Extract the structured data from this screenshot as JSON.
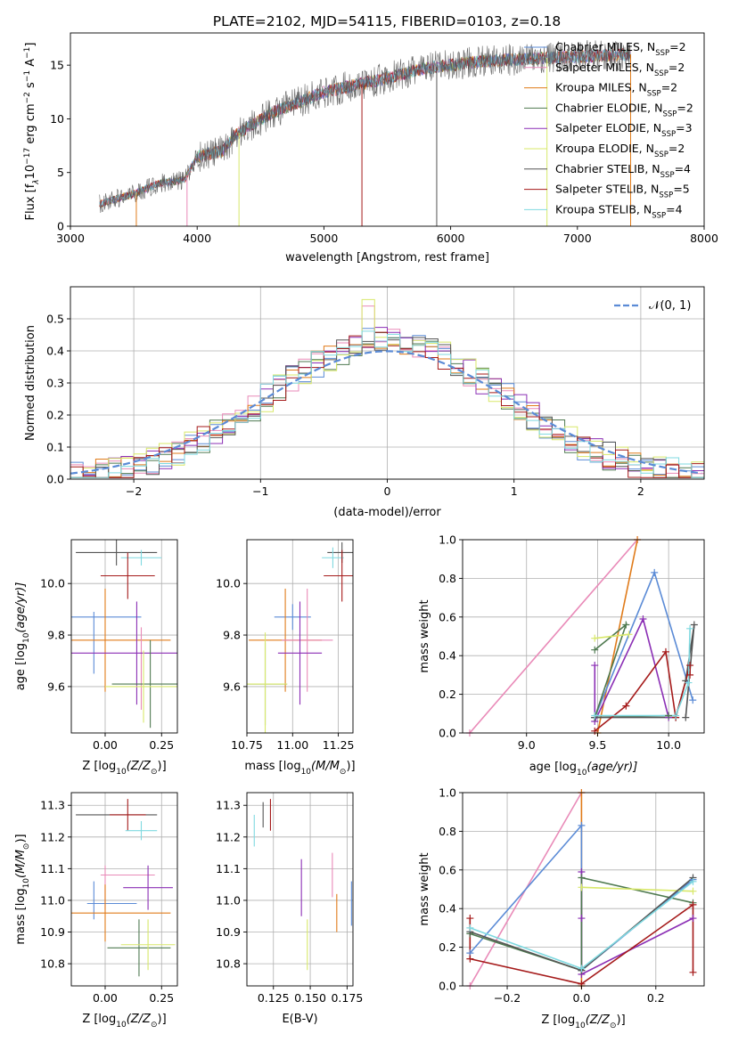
{
  "title": "PLATE=2102, MJD=54115, FIBERID=0103, z=0.18",
  "colors": {
    "chabrier_miles": "#5b8bd6",
    "salpeter_miles": "#e98ab8",
    "kroupa_miles": "#e07b1a",
    "chabrier_elodie": "#4f7a50",
    "salpeter_elodie": "#8b2fb5",
    "kroupa_elodie": "#d8e86a",
    "chabrier_stelib": "#555555",
    "salpeter_stelib": "#a51a1a",
    "kroupa_stelib": "#7fd9e0",
    "normal_curve": "#5b8bd6"
  },
  "chart_data": [
    {
      "id": "spectrum",
      "type": "line",
      "xlabel": "wavelength [Angstrom, rest frame]",
      "ylabel": "Flux [f",
      "xlim": [
        3000,
        8000
      ],
      "ylim": [
        0,
        18
      ],
      "xticks": [
        "3000",
        "4000",
        "5000",
        "6000",
        "7000",
        "8000"
      ],
      "yticks": [
        "0",
        "5",
        "10",
        "15"
      ],
      "x_range_data": [
        3230,
        7420
      ],
      "legend": [
        {
          "key": "chabrier_miles",
          "label": "Chabrier MILES, N",
          "n": "2"
        },
        {
          "key": "salpeter_miles",
          "label": "Salpeter MILES, N",
          "n": "2"
        },
        {
          "key": "kroupa_miles",
          "label": "Kroupa MILES, N",
          "n": "2"
        },
        {
          "key": "chabrier_elodie",
          "label": "Chabrier ELODIE, N",
          "n": "2"
        },
        {
          "key": "salpeter_elodie",
          "label": "Salpeter ELODIE, N",
          "n": "3"
        },
        {
          "key": "kroupa_elodie",
          "label": "Kroupa ELODIE, N",
          "n": "2"
        },
        {
          "key": "chabrier_stelib",
          "label": "Chabrier STELIB, N",
          "n": "4"
        },
        {
          "key": "salpeter_stelib",
          "label": "Salpeter STELIB, N",
          "n": "5"
        },
        {
          "key": "kroupa_stelib",
          "label": "Kroupa STELIB, N",
          "n": "4"
        }
      ],
      "continuum": [
        [
          3230,
          2.1
        ],
        [
          3500,
          3.0
        ],
        [
          3700,
          4.0
        ],
        [
          3900,
          4.3
        ],
        [
          4000,
          6.5
        ],
        [
          4200,
          7.0
        ],
        [
          4300,
          8.5
        ],
        [
          4600,
          10.6
        ],
        [
          5000,
          12.5
        ],
        [
          5200,
          13.0
        ],
        [
          5500,
          13.8
        ],
        [
          5800,
          14.7
        ],
        [
          6200,
          15.3
        ],
        [
          6600,
          15.6
        ],
        [
          7000,
          15.8
        ],
        [
          7420,
          16.0
        ]
      ],
      "vertical_drops": [
        3520,
        3920,
        4330,
        5300,
        5890,
        6760,
        7420
      ]
    },
    {
      "id": "residuals",
      "type": "histogram",
      "xlabel": "(data-model)/error",
      "ylabel": "Normed distribution",
      "xlim": [
        -2.5,
        2.5
      ],
      "ylim": [
        0,
        0.6
      ],
      "xticks": [
        "−2",
        "−1",
        "0",
        "1",
        "2"
      ],
      "yticks": [
        "0.0",
        "0.1",
        "0.2",
        "0.3",
        "0.4",
        "0.5"
      ],
      "bin_width": 0.1,
      "bins_start": -2.5,
      "legend": {
        "label": "𝒩(0, 1)"
      },
      "peak_bins": {
        "kroupa_elodie": 0.56,
        "salpeter_miles": 0.54
      }
    },
    {
      "id": "age_vs_Z",
      "type": "errorbar",
      "xlabel": "Z [log",
      "ylabel": "age  [log",
      "xlim": [
        -0.15,
        0.32
      ],
      "ylim": [
        9.42,
        10.17
      ],
      "xticks": [
        "0.00",
        "0.25"
      ],
      "yticks": [
        "9.6",
        "9.8",
        "10.0"
      ],
      "points": [
        {
          "key": "chabrier_stelib",
          "x": 0.05,
          "xerr": 0.18,
          "y": 10.12,
          "yerr": 0.05
        },
        {
          "key": "kroupa_stelib",
          "x": 0.16,
          "xerr": 0.09,
          "y": 10.1,
          "yerr": 0.03
        },
        {
          "key": "salpeter_stelib",
          "x": 0.1,
          "xerr": 0.12,
          "y": 10.03,
          "yerr": 0.09
        },
        {
          "key": "chabrier_miles",
          "x": -0.05,
          "xerr": 0.0,
          "y": 9.77,
          "yerr": 0.12
        },
        {
          "key": "chabrier_miles",
          "x": 0.0,
          "xerr": 0.16,
          "y": 9.87,
          "yerr": 0.0
        },
        {
          "key": "kroupa_miles",
          "x": 0.0,
          "xerr": 0.29,
          "y": 9.78,
          "yerr": 0.2
        },
        {
          "key": "salpeter_miles",
          "x": 0.16,
          "xerr": 0.0,
          "y": 9.67,
          "yerr": 0.16
        },
        {
          "key": "salpeter_elodie",
          "x": 0.14,
          "xerr": 0.3,
          "y": 9.73,
          "yerr": 0.2
        },
        {
          "key": "chabrier_elodie",
          "x": 0.2,
          "xerr": 0.17,
          "y": 9.61,
          "yerr": 0.17
        },
        {
          "key": "kroupa_elodie",
          "x": 0.17,
          "xerr": 0.17,
          "y": 9.6,
          "yerr": 0.14
        }
      ]
    },
    {
      "id": "age_vs_mass",
      "type": "errorbar",
      "xlabel": "mass [log",
      "ylabel": "",
      "xlim": [
        10.75,
        11.33
      ],
      "ylim": [
        9.42,
        10.17
      ],
      "xticks": [
        "10.75",
        "11.00",
        "11.25"
      ],
      "yticks": [
        "9.6",
        "9.8",
        "10.0"
      ],
      "points": [
        {
          "key": "chabrier_stelib",
          "x": 11.27,
          "xerr": 0.08,
          "y": 10.12,
          "yerr": 0.04
        },
        {
          "key": "kroupa_stelib",
          "x": 11.22,
          "xerr": 0.06,
          "y": 10.1,
          "yerr": 0.04
        },
        {
          "key": "salpeter_stelib",
          "x": 11.27,
          "xerr": 0.1,
          "y": 10.03,
          "yerr": 0.1
        },
        {
          "key": "chabrier_miles",
          "x": 11.0,
          "xerr": 0.1,
          "y": 9.87,
          "yerr": 0.05
        },
        {
          "key": "kroupa_miles",
          "x": 10.96,
          "xerr": 0.2,
          "y": 9.78,
          "yerr": 0.2
        },
        {
          "key": "salpeter_miles",
          "x": 11.08,
          "xerr": 0.14,
          "y": 9.78,
          "yerr": 0.2
        },
        {
          "key": "salpeter_elodie",
          "x": 11.04,
          "xerr": 0.12,
          "y": 9.73,
          "yerr": 0.2
        },
        {
          "key": "chabrier_elodie",
          "x": 10.85,
          "xerr": 0.12,
          "y": 9.61,
          "yerr": 0.16
        },
        {
          "key": "kroupa_elodie",
          "x": 10.85,
          "xerr": 0.12,
          "y": 9.61,
          "yerr": 0.2
        }
      ]
    },
    {
      "id": "massweight_vs_age",
      "type": "line",
      "xlabel": "age  [log",
      "ylabel": "mass weight",
      "xlim": [
        8.55,
        10.25
      ],
      "ylim": [
        0,
        1
      ],
      "xticks": [
        "9.0",
        "9.5",
        "10.0"
      ],
      "yticks": [
        "0.0",
        "0.2",
        "0.4",
        "0.6",
        "0.8",
        "1.0"
      ],
      "series": [
        {
          "key": "salpeter_miles",
          "x": [
            8.6,
            9.78
          ],
          "y": [
            0.0,
            1.0
          ]
        },
        {
          "key": "kroupa_miles",
          "x": [
            9.5,
            9.78
          ],
          "y": [
            0.0,
            1.0
          ]
        },
        {
          "key": "chabrier_miles",
          "x": [
            9.48,
            9.9,
            10.17
          ],
          "y": [
            0.08,
            0.83,
            0.17
          ]
        },
        {
          "key": "salpeter_elodie",
          "x": [
            9.48,
            9.48,
            9.82,
            10.0
          ],
          "y": [
            0.35,
            0.06,
            0.59,
            0.08
          ]
        },
        {
          "key": "chabrier_elodie",
          "x": [
            9.48,
            9.7,
            9.48,
            10.0
          ],
          "y": [
            0.43,
            0.56,
            0.08,
            0.09
          ]
        },
        {
          "key": "kroupa_elodie",
          "x": [
            9.48,
            9.72
          ],
          "y": [
            0.49,
            0.51
          ]
        },
        {
          "key": "chabrier_stelib",
          "x": [
            9.48,
            10.05,
            10.12,
            10.18,
            10.12
          ],
          "y": [
            0.08,
            0.08,
            0.27,
            0.56,
            0.08
          ]
        },
        {
          "key": "salpeter_stelib",
          "x": [
            9.48,
            9.7,
            9.98,
            10.05,
            10.15,
            10.15
          ],
          "y": [
            0.01,
            0.14,
            0.42,
            0.08,
            0.35,
            0.3
          ]
        },
        {
          "key": "kroupa_stelib",
          "x": [
            9.48,
            10.05,
            10.14,
            10.15
          ],
          "y": [
            0.09,
            0.09,
            0.26,
            0.54
          ]
        }
      ]
    },
    {
      "id": "mass_vs_Z",
      "type": "errorbar",
      "xlabel": "Z [log",
      "ylabel": "mass [log",
      "xlim": [
        -0.15,
        0.32
      ],
      "ylim": [
        10.73,
        11.34
      ],
      "xticks": [
        "0.00",
        "0.25"
      ],
      "yticks": [
        "10.8",
        "10.9",
        "11.0",
        "11.1",
        "11.2",
        "11.3"
      ],
      "points": [
        {
          "key": "chabrier_stelib",
          "x": 0.05,
          "xerr": 0.18,
          "y": 11.27,
          "yerr": 0.0
        },
        {
          "key": "salpeter_stelib",
          "x": 0.1,
          "xerr": 0.08,
          "y": 11.27,
          "yerr": 0.05
        },
        {
          "key": "kroupa_stelib",
          "x": 0.16,
          "xerr": 0.07,
          "y": 11.22,
          "yerr": 0.03
        },
        {
          "key": "salpeter_miles",
          "x": 0.1,
          "xerr": 0.12,
          "y": 11.08,
          "yerr": 0.0
        },
        {
          "key": "salpeter_miles",
          "x": 0.0,
          "xerr": 0.0,
          "y": 11.04,
          "yerr": 0.07
        },
        {
          "key": "salpeter_elodie",
          "x": 0.19,
          "xerr": 0.11,
          "y": 11.04,
          "yerr": 0.07
        },
        {
          "key": "chabrier_miles",
          "x": -0.05,
          "xerr": 0.0,
          "y": 11.0,
          "yerr": 0.06
        },
        {
          "key": "chabrier_miles",
          "x": 0.03,
          "xerr": 0.11,
          "y": 10.99,
          "yerr": 0.0
        },
        {
          "key": "kroupa_miles",
          "x": 0.0,
          "xerr": 0.29,
          "y": 10.96,
          "yerr": 0.09
        },
        {
          "key": "chabrier_elodie",
          "x": 0.15,
          "xerr": 0.14,
          "y": 10.85,
          "yerr": 0.09
        },
        {
          "key": "kroupa_elodie",
          "x": 0.19,
          "xerr": 0.12,
          "y": 10.86,
          "yerr": 0.08
        }
      ]
    },
    {
      "id": "mass_vs_ebv",
      "type": "errorbar",
      "xlabel": "E(B-V)",
      "ylabel": "",
      "xlim": [
        0.107,
        0.179
      ],
      "ylim": [
        10.73,
        11.34
      ],
      "xticks": [
        "0.125",
        "0.150",
        "0.175"
      ],
      "yticks": [
        "10.8",
        "10.9",
        "11.0",
        "11.1",
        "11.2",
        "11.3"
      ],
      "points": [
        {
          "key": "kroupa_stelib",
          "x": 0.112,
          "y": 11.22,
          "yerr": 0.05
        },
        {
          "key": "chabrier_stelib",
          "x": 0.118,
          "y": 11.27,
          "yerr": 0.04
        },
        {
          "key": "salpeter_stelib",
          "x": 0.123,
          "y": 11.27,
          "yerr": 0.05
        },
        {
          "key": "salpeter_elodie",
          "x": 0.144,
          "y": 11.04,
          "yerr": 0.09
        },
        {
          "key": "kroupa_elodie",
          "x": 0.148,
          "y": 10.86,
          "yerr": 0.08
        },
        {
          "key": "salpeter_miles",
          "x": 0.165,
          "y": 11.08,
          "yerr": 0.07
        },
        {
          "key": "kroupa_miles",
          "x": 0.168,
          "y": 10.96,
          "yerr": 0.06
        },
        {
          "key": "chabrier_miles",
          "x": 0.178,
          "y": 10.99,
          "yerr": 0.07
        }
      ]
    },
    {
      "id": "massweight_vs_Z",
      "type": "line",
      "xlabel": "Z [log",
      "ylabel": "mass weight",
      "xlim": [
        -0.32,
        0.33
      ],
      "ylim": [
        0,
        1
      ],
      "xticks": [
        "−0.2",
        "0.0",
        "0.2"
      ],
      "yticks": [
        "0.0",
        "0.2",
        "0.4",
        "0.6",
        "0.8",
        "1.0"
      ],
      "series": [
        {
          "key": "salpeter_miles",
          "x": [
            -0.3,
            0.0
          ],
          "y": [
            0.0,
            1.0
          ]
        },
        {
          "key": "kroupa_miles",
          "x": [
            0.0,
            0.0
          ],
          "y": [
            0.0,
            1.0
          ]
        },
        {
          "key": "chabrier_miles",
          "x": [
            -0.3,
            0.0,
            0.0,
            0.3
          ],
          "y": [
            0.17,
            0.83,
            0.08,
            0.55
          ]
        },
        {
          "key": "salpeter_elodie",
          "x": [
            0.0,
            0.0,
            0.0,
            0.3
          ],
          "y": [
            0.59,
            0.35,
            0.06,
            0.35
          ]
        },
        {
          "key": "chabrier_elodie",
          "x": [
            -0.3,
            0.0,
            0.0,
            0.3
          ],
          "y": [
            0.27,
            0.08,
            0.56,
            0.43
          ]
        },
        {
          "key": "kroupa_elodie",
          "x": [
            0.0,
            0.3
          ],
          "y": [
            0.51,
            0.49
          ]
        },
        {
          "key": "chabrier_stelib",
          "x": [
            -0.3,
            0.0,
            0.3
          ],
          "y": [
            0.28,
            0.08,
            0.56
          ]
        },
        {
          "key": "salpeter_stelib",
          "x": [
            -0.3,
            -0.3,
            0.0,
            0.3,
            0.3
          ],
          "y": [
            0.35,
            0.14,
            0.01,
            0.42,
            0.07
          ]
        },
        {
          "key": "kroupa_stelib",
          "x": [
            -0.3,
            0.0,
            0.3
          ],
          "y": [
            0.3,
            0.09,
            0.54
          ]
        }
      ]
    }
  ],
  "axis_suffixes": {
    "spectrum_ylabel": "10",
    "Z_label": "(Z/Z",
    "age_label": "(age/yr)]",
    "mass_label": "(M/M"
  }
}
